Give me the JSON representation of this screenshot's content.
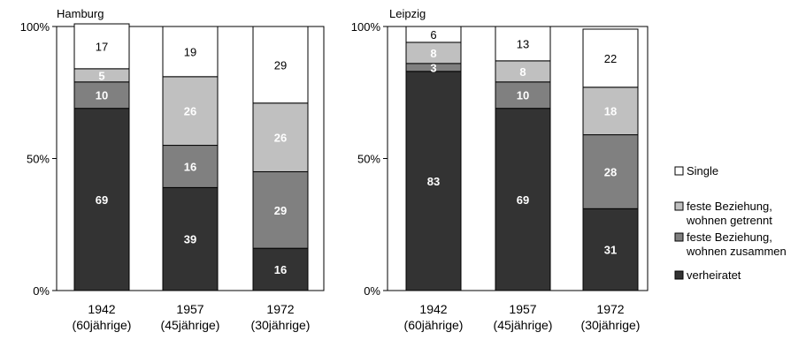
{
  "chart_data": [
    {
      "type": "bar",
      "stacked": true,
      "percent": true,
      "title": "Hamburg",
      "categories": [
        "1942\n(60jährige)",
        "1957\n(45jährige)",
        "1972\n(30jährige)"
      ],
      "ylim": [
        0,
        100
      ],
      "yticks": [
        "0%",
        "50%",
        "100%"
      ],
      "series": [
        {
          "name": "verheiratet",
          "values": [
            69,
            39,
            16
          ]
        },
        {
          "name": "feste Beziehung,\nwohnen zusammen",
          "values": [
            10,
            16,
            29
          ]
        },
        {
          "name": "feste Beziehung,\nwohnen getrennt",
          "values": [
            5,
            26,
            26
          ]
        },
        {
          "name": "Single",
          "values": [
            17,
            19,
            29
          ]
        }
      ]
    },
    {
      "type": "bar",
      "stacked": true,
      "percent": true,
      "title": "Leipzig",
      "categories": [
        "1942\n(60jährige)",
        "1957\n(45jährige)",
        "1972\n(30jährige)"
      ],
      "ylim": [
        0,
        100
      ],
      "yticks": [
        "0%",
        "50%",
        "100%"
      ],
      "series": [
        {
          "name": "verheiratet",
          "values": [
            83,
            69,
            31
          ]
        },
        {
          "name": "feste Beziehung,\nwohnen zusammen",
          "values": [
            3,
            10,
            28
          ]
        },
        {
          "name": "feste Beziehung,\nwohnen getrennt",
          "values": [
            8,
            8,
            18
          ]
        },
        {
          "name": "Single",
          "values": [
            6,
            13,
            22
          ]
        }
      ]
    }
  ],
  "legend": {
    "placement": "right",
    "order": [
      "Single",
      "feste Beziehung,\nwohnen getrennt",
      "feste Beziehung,\nwohnen zusammen",
      "verheiratet"
    ]
  },
  "colors": {
    "verheiratet": "#333333",
    "zusammen": "#808080",
    "getrennt": "#c0c0c0",
    "Single": "#ffffff",
    "label_dark": "#ffffff",
    "label_light": "#000000"
  }
}
